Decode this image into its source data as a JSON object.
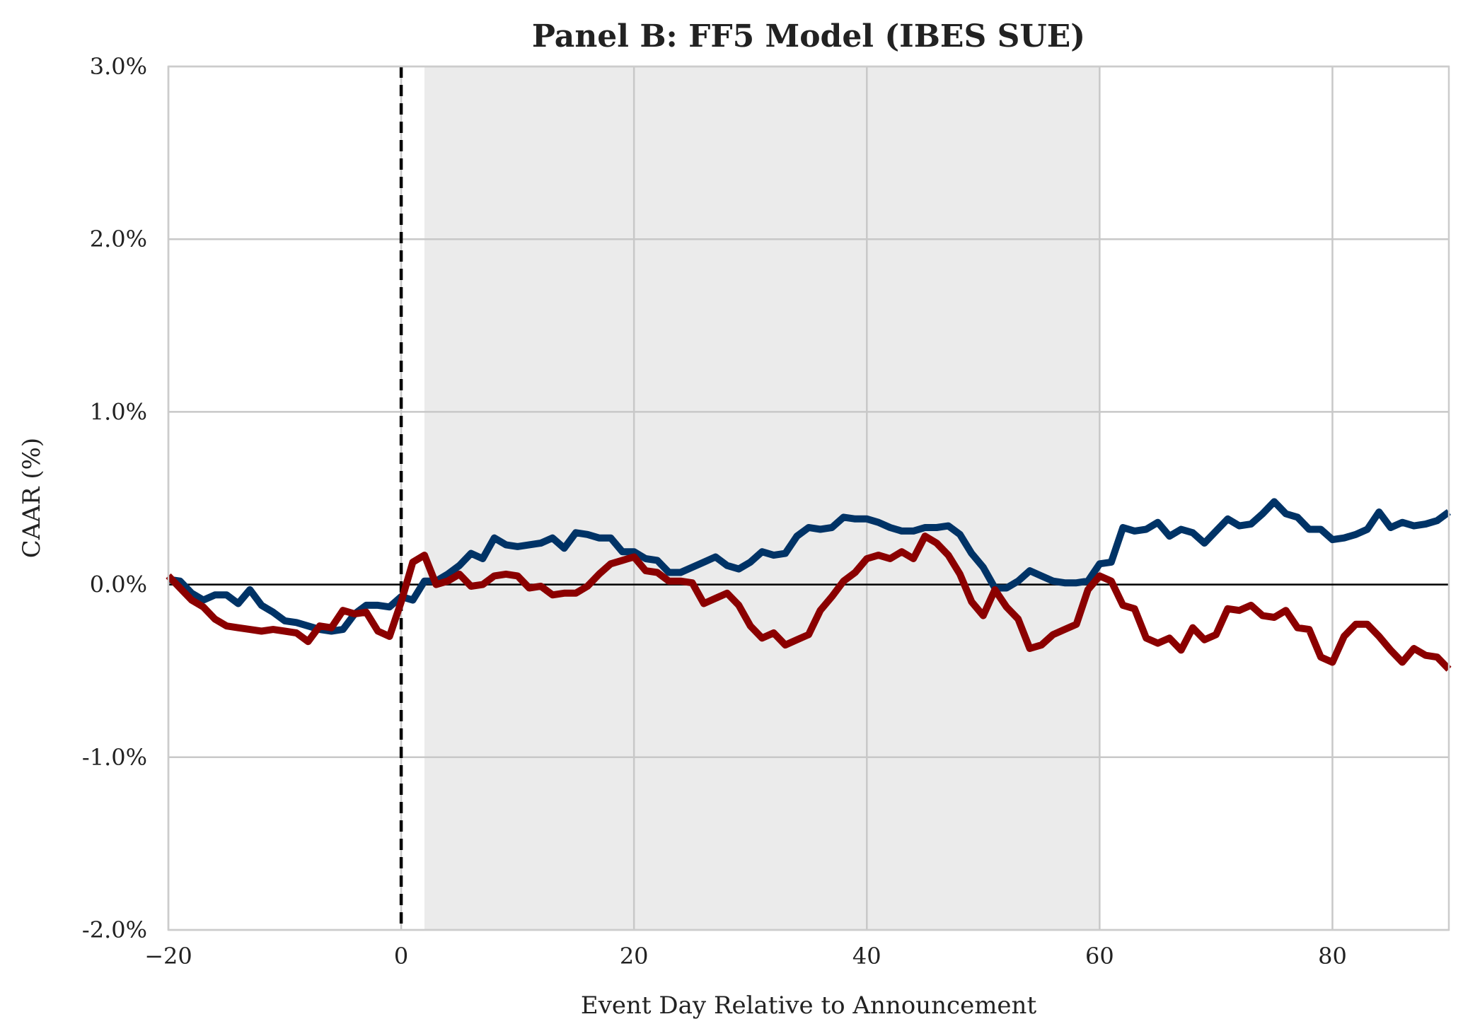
{
  "chart_data": {
    "type": "line",
    "title": "Panel B: FF5 Model (IBES SUE)",
    "xlabel": "Event Day Relative to Announcement",
    "ylabel": "CAAR (%)",
    "xlim": [
      -20,
      90
    ],
    "ylim": [
      -2.0,
      3.0
    ],
    "xticks": [
      -20,
      0,
      20,
      40,
      60,
      80
    ],
    "xtick_labels": [
      "−20",
      "0",
      "20",
      "40",
      "60",
      "80"
    ],
    "yticks": [
      -2.0,
      -1.0,
      0.0,
      1.0,
      2.0,
      3.0
    ],
    "ytick_labels": [
      "-2.0%",
      "-1.0%",
      "0.0%",
      "1.0%",
      "2.0%",
      "3.0%"
    ],
    "grid": true,
    "legend": "none",
    "shaded_region": {
      "x_start": 2,
      "x_end": 60,
      "color": "#ebebeb"
    },
    "event_line": {
      "x": 0,
      "style": "dashed",
      "color": "#000000"
    },
    "zero_line": {
      "y": 0,
      "color": "#000000"
    },
    "x": [
      -20,
      -19,
      -18,
      -17,
      -16,
      -15,
      -14,
      -13,
      -12,
      -11,
      -10,
      -9,
      -8,
      -7,
      -6,
      -5,
      -4,
      -3,
      -2,
      -1,
      0,
      1,
      2,
      3,
      4,
      5,
      6,
      7,
      8,
      9,
      10,
      11,
      12,
      13,
      14,
      15,
      16,
      17,
      18,
      19,
      20,
      21,
      22,
      23,
      24,
      25,
      26,
      27,
      28,
      29,
      30,
      31,
      32,
      33,
      34,
      35,
      36,
      37,
      38,
      39,
      40,
      41,
      42,
      43,
      44,
      45,
      46,
      47,
      48,
      49,
      50,
      51,
      52,
      53,
      54,
      55,
      56,
      57,
      58,
      59,
      60,
      61,
      62,
      63,
      64,
      65,
      66,
      67,
      68,
      69,
      70,
      71,
      72,
      73,
      74,
      75,
      76,
      77,
      78,
      79,
      80,
      81,
      82,
      83,
      84,
      85,
      86,
      87,
      88,
      89,
      90
    ],
    "series": [
      {
        "color": "#003366",
        "values": [
          0.03,
          0.02,
          -0.05,
          -0.09,
          -0.06,
          -0.06,
          -0.11,
          -0.03,
          -0.12,
          -0.16,
          -0.21,
          -0.22,
          -0.24,
          -0.26,
          -0.27,
          -0.26,
          -0.17,
          -0.12,
          -0.12,
          -0.13,
          -0.07,
          -0.09,
          0.02,
          0.02,
          0.06,
          0.11,
          0.18,
          0.15,
          0.27,
          0.23,
          0.22,
          0.23,
          0.24,
          0.27,
          0.21,
          0.3,
          0.29,
          0.27,
          0.27,
          0.19,
          0.19,
          0.15,
          0.14,
          0.07,
          0.07,
          0.1,
          0.13,
          0.16,
          0.11,
          0.09,
          0.13,
          0.19,
          0.17,
          0.18,
          0.28,
          0.33,
          0.32,
          0.33,
          0.39,
          0.38,
          0.38,
          0.36,
          0.33,
          0.31,
          0.31,
          0.33,
          0.33,
          0.34,
          0.29,
          0.18,
          0.1,
          -0.02,
          -0.02,
          0.02,
          0.08,
          0.05,
          0.02,
          0.01,
          0.01,
          0.02,
          0.12,
          0.13,
          0.33,
          0.31,
          0.32,
          0.36,
          0.28,
          0.32,
          0.3,
          0.24,
          0.31,
          0.38,
          0.34,
          0.35,
          0.41,
          0.48,
          0.41,
          0.39,
          0.32,
          0.32,
          0.26,
          0.27,
          0.29,
          0.32,
          0.42,
          0.33,
          0.36,
          0.34,
          0.35,
          0.37,
          0.42
        ]
      },
      {
        "color": "#8b0000",
        "values": [
          0.05,
          -0.02,
          -0.09,
          -0.13,
          -0.2,
          -0.24,
          -0.25,
          -0.26,
          -0.27,
          -0.26,
          -0.27,
          -0.28,
          -0.33,
          -0.24,
          -0.25,
          -0.15,
          -0.17,
          -0.16,
          -0.27,
          -0.3,
          -0.1,
          0.13,
          0.17,
          0.0,
          0.02,
          0.06,
          -0.01,
          0.0,
          0.05,
          0.06,
          0.05,
          -0.02,
          -0.01,
          -0.06,
          -0.05,
          -0.05,
          -0.01,
          0.06,
          0.12,
          0.14,
          0.16,
          0.08,
          0.07,
          0.02,
          0.02,
          0.01,
          -0.11,
          -0.08,
          -0.05,
          -0.12,
          -0.24,
          -0.31,
          -0.28,
          -0.35,
          -0.32,
          -0.29,
          -0.15,
          -0.07,
          0.02,
          0.07,
          0.15,
          0.17,
          0.15,
          0.19,
          0.15,
          0.28,
          0.24,
          0.17,
          0.06,
          -0.1,
          -0.18,
          -0.03,
          -0.13,
          -0.2,
          -0.37,
          -0.35,
          -0.29,
          -0.26,
          -0.23,
          -0.03,
          0.05,
          0.02,
          -0.12,
          -0.14,
          -0.31,
          -0.34,
          -0.31,
          -0.38,
          -0.25,
          -0.32,
          -0.29,
          -0.14,
          -0.15,
          -0.12,
          -0.18,
          -0.19,
          -0.15,
          -0.25,
          -0.26,
          -0.42,
          -0.45,
          -0.3,
          -0.23,
          -0.23,
          -0.3,
          -0.38,
          -0.45,
          -0.37,
          -0.41,
          -0.42,
          -0.49
        ]
      }
    ]
  }
}
